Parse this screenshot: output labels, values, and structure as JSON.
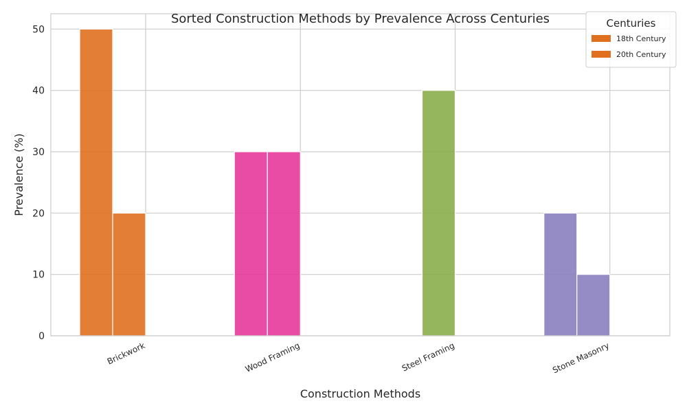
{
  "chart_data": {
    "type": "bar",
    "title": "Sorted Construction Methods by Prevalence Across Centuries",
    "xlabel": "Construction Methods",
    "ylabel": "Prevalence (%)",
    "categories": [
      "Brickwork",
      "Wood Framing",
      "Steel Framing",
      "Stone Masonry"
    ],
    "series": [
      {
        "name": "18th Century",
        "values": [
          50,
          30,
          0,
          20
        ]
      },
      {
        "name": "20th Century",
        "values": [
          20,
          30,
          40,
          10
        ]
      }
    ],
    "category_colors": [
      "#e07020",
      "#e7399a",
      "#8aae4a",
      "#8a80c0"
    ],
    "ylim": [
      0,
      52.5
    ],
    "yticks": [
      0,
      10,
      20,
      30,
      40,
      50
    ],
    "grid": true,
    "legend": {
      "title": "Centuries",
      "placement": "top-right",
      "entries": [
        "18th Century",
        "20th Century"
      ],
      "swatch_color": "#e07020"
    }
  }
}
